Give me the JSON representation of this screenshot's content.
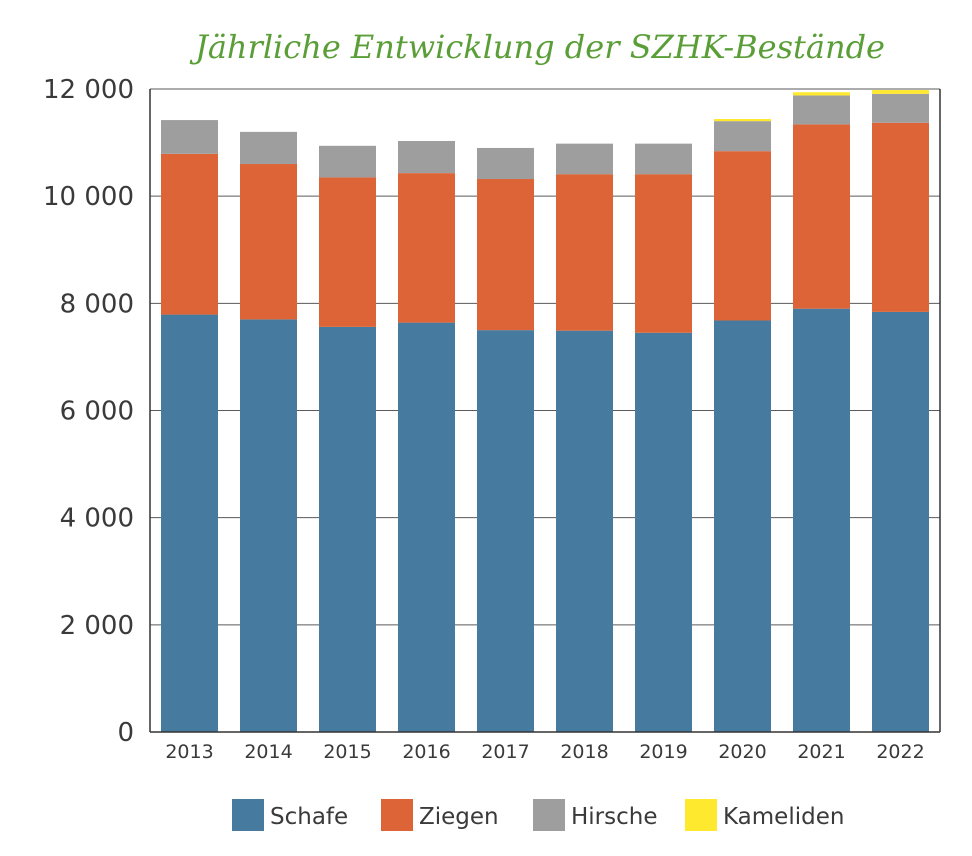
{
  "chart_data": {
    "type": "bar",
    "stacked": true,
    "title": "Jährliche Entwicklung der SZHK-Bestände",
    "xlabel": "",
    "ylabel": "",
    "categories": [
      "2013",
      "2014",
      "2015",
      "2016",
      "2017",
      "2018",
      "2019",
      "2020",
      "2021",
      "2022"
    ],
    "series": [
      {
        "name": "Schafe",
        "color": "#467a9e",
        "values": [
          7790,
          7700,
          7560,
          7640,
          7500,
          7490,
          7450,
          7680,
          7900,
          7840
        ]
      },
      {
        "name": "Ziegen",
        "color": "#dc6437",
        "values": [
          3000,
          2900,
          2790,
          2790,
          2820,
          2920,
          2960,
          3160,
          3440,
          3530
        ]
      },
      {
        "name": "Hirsche",
        "color": "#9e9e9e",
        "values": [
          630,
          600,
          590,
          600,
          580,
          570,
          570,
          560,
          540,
          540
        ]
      },
      {
        "name": "Kameliden",
        "color": "#ffe92e",
        "values": [
          0,
          0,
          0,
          0,
          0,
          0,
          0,
          40,
          60,
          70
        ]
      }
    ],
    "ylim": [
      0,
      12000
    ],
    "yticks": [
      0,
      2000,
      4000,
      6000,
      8000,
      10000,
      12000
    ],
    "ytick_labels": [
      "0",
      "2 000",
      "4 000",
      "6 000",
      "8 000",
      "10 000",
      "12 000"
    ],
    "grid": true,
    "legend_position": "bottom"
  }
}
